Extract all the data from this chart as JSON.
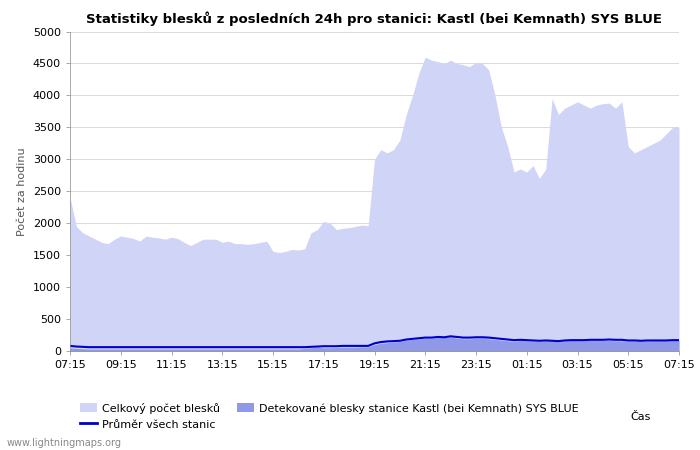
{
  "title": "Statistiky blesků z posledních 24h pro stanici: Kastl (bei Kemnath) SYS BLUE",
  "xlabel": "Čas",
  "ylabel": "Počet za hodinu",
  "xlim": [
    0,
    96
  ],
  "ylim": [
    0,
    5000
  ],
  "yticks": [
    0,
    500,
    1000,
    1500,
    2000,
    2500,
    3000,
    3500,
    4000,
    4500,
    5000
  ],
  "xtick_labels": [
    "07:15",
    "09:15",
    "11:15",
    "13:15",
    "15:15",
    "17:15",
    "19:15",
    "21:15",
    "23:15",
    "01:15",
    "03:15",
    "05:15",
    "07:15"
  ],
  "xtick_positions": [
    0,
    8,
    16,
    24,
    32,
    40,
    48,
    56,
    64,
    72,
    80,
    88,
    96
  ],
  "fill_color_light": "#d0d4f7",
  "fill_color_dark": "#9099e8",
  "line_color": "#0000cc",
  "background_color": "#ffffff",
  "grid_color": "#cccccc",
  "watermark": "www.lightningmaps.org",
  "legend_1": "Celkový počet blesků",
  "legend_2": "Průměr všech stanic",
  "legend_3": "Detekované blesky stanice Kastl (bei Kemnath) SYS BLUE",
  "total_x": [
    0,
    1,
    2,
    3,
    4,
    5,
    6,
    7,
    8,
    9,
    10,
    11,
    12,
    13,
    14,
    15,
    16,
    17,
    18,
    19,
    20,
    21,
    22,
    23,
    24,
    25,
    26,
    27,
    28,
    29,
    30,
    31,
    32,
    33,
    34,
    35,
    36,
    37,
    38,
    39,
    40,
    41,
    42,
    43,
    44,
    45,
    46,
    47,
    48,
    49,
    50,
    51,
    52,
    53,
    54,
    55,
    56,
    57,
    58,
    59,
    60,
    61,
    62,
    63,
    64,
    65,
    66,
    67,
    68,
    69,
    70,
    71,
    72,
    73,
    74,
    75,
    76,
    77,
    78,
    79,
    80,
    81,
    82,
    83,
    84,
    85,
    86,
    87,
    88,
    89,
    90,
    91,
    92,
    93,
    94,
    95,
    96
  ],
  "total_y": [
    2400,
    1950,
    1850,
    1800,
    1750,
    1700,
    1680,
    1750,
    1800,
    1780,
    1760,
    1720,
    1800,
    1780,
    1770,
    1750,
    1780,
    1760,
    1700,
    1650,
    1700,
    1750,
    1750,
    1750,
    1700,
    1720,
    1680,
    1680,
    1670,
    1680,
    1700,
    1720,
    1560,
    1540,
    1560,
    1590,
    1580,
    1600,
    1850,
    1900,
    2030,
    2000,
    1900,
    1920,
    1930,
    1950,
    1970,
    1960,
    3000,
    3150,
    3100,
    3150,
    3300,
    3700,
    4000,
    4350,
    4600,
    4550,
    4530,
    4500,
    4550,
    4500,
    4480,
    4450,
    4520,
    4500,
    4400,
    4000,
    3500,
    3200,
    2800,
    2850,
    2800,
    2900,
    2700,
    2850,
    3950,
    3700,
    3800,
    3850,
    3900,
    3850,
    3800,
    3850,
    3870,
    3880,
    3800,
    3900,
    3200,
    3100,
    3150,
    3200,
    3250,
    3300,
    3400,
    3500,
    3500
  ],
  "detected_x": [
    0,
    1,
    2,
    3,
    4,
    5,
    6,
    7,
    8,
    9,
    10,
    11,
    12,
    13,
    14,
    15,
    16,
    17,
    18,
    19,
    20,
    21,
    22,
    23,
    24,
    25,
    26,
    27,
    28,
    29,
    30,
    31,
    32,
    33,
    34,
    35,
    36,
    37,
    38,
    39,
    40,
    41,
    42,
    43,
    44,
    45,
    46,
    47,
    48,
    49,
    50,
    51,
    52,
    53,
    54,
    55,
    56,
    57,
    58,
    59,
    60,
    61,
    62,
    63,
    64,
    65,
    66,
    67,
    68,
    69,
    70,
    71,
    72,
    73,
    74,
    75,
    76,
    77,
    78,
    79,
    80,
    81,
    82,
    83,
    84,
    85,
    86,
    87,
    88,
    89,
    90,
    91,
    92,
    93,
    94,
    95,
    96
  ],
  "detected_y": [
    50,
    40,
    35,
    30,
    30,
    30,
    30,
    30,
    30,
    30,
    30,
    30,
    30,
    30,
    30,
    30,
    30,
    30,
    30,
    30,
    30,
    30,
    30,
    30,
    30,
    30,
    30,
    30,
    30,
    30,
    30,
    30,
    30,
    30,
    30,
    30,
    30,
    40,
    50,
    60,
    50,
    50,
    55,
    60,
    60,
    60,
    65,
    65,
    100,
    120,
    130,
    140,
    150,
    170,
    180,
    190,
    200,
    200,
    210,
    210,
    220,
    200,
    190,
    190,
    200,
    200,
    190,
    180,
    170,
    160,
    155,
    165,
    160,
    155,
    150,
    160,
    155,
    155,
    160,
    165,
    165,
    165,
    165,
    165,
    165,
    165,
    160,
    160,
    155,
    155,
    155,
    155,
    160,
    160,
    160,
    165,
    165
  ],
  "avg_x": [
    0,
    1,
    2,
    3,
    4,
    5,
    6,
    7,
    8,
    9,
    10,
    11,
    12,
    13,
    14,
    15,
    16,
    17,
    18,
    19,
    20,
    21,
    22,
    23,
    24,
    25,
    26,
    27,
    28,
    29,
    30,
    31,
    32,
    33,
    34,
    35,
    36,
    37,
    38,
    39,
    40,
    41,
    42,
    43,
    44,
    45,
    46,
    47,
    48,
    49,
    50,
    51,
    52,
    53,
    54,
    55,
    56,
    57,
    58,
    59,
    60,
    61,
    62,
    63,
    64,
    65,
    66,
    67,
    68,
    69,
    70,
    71,
    72,
    73,
    74,
    75,
    76,
    77,
    78,
    79,
    80,
    81,
    82,
    83,
    84,
    85,
    86,
    87,
    88,
    89,
    90,
    91,
    92,
    93,
    94,
    95,
    96
  ],
  "avg_y": [
    80,
    70,
    65,
    60,
    60,
    60,
    60,
    60,
    60,
    60,
    60,
    60,
    60,
    60,
    60,
    60,
    60,
    60,
    60,
    60,
    60,
    60,
    60,
    60,
    60,
    60,
    60,
    60,
    60,
    60,
    60,
    60,
    60,
    60,
    60,
    60,
    60,
    60,
    65,
    70,
    75,
    75,
    75,
    80,
    80,
    80,
    80,
    80,
    120,
    140,
    150,
    155,
    160,
    180,
    190,
    200,
    210,
    210,
    220,
    215,
    230,
    220,
    210,
    210,
    215,
    215,
    210,
    200,
    190,
    180,
    170,
    175,
    170,
    165,
    160,
    165,
    160,
    155,
    165,
    170,
    170,
    170,
    175,
    175,
    175,
    180,
    175,
    175,
    165,
    165,
    160,
    165,
    165,
    165,
    165,
    170,
    170
  ]
}
